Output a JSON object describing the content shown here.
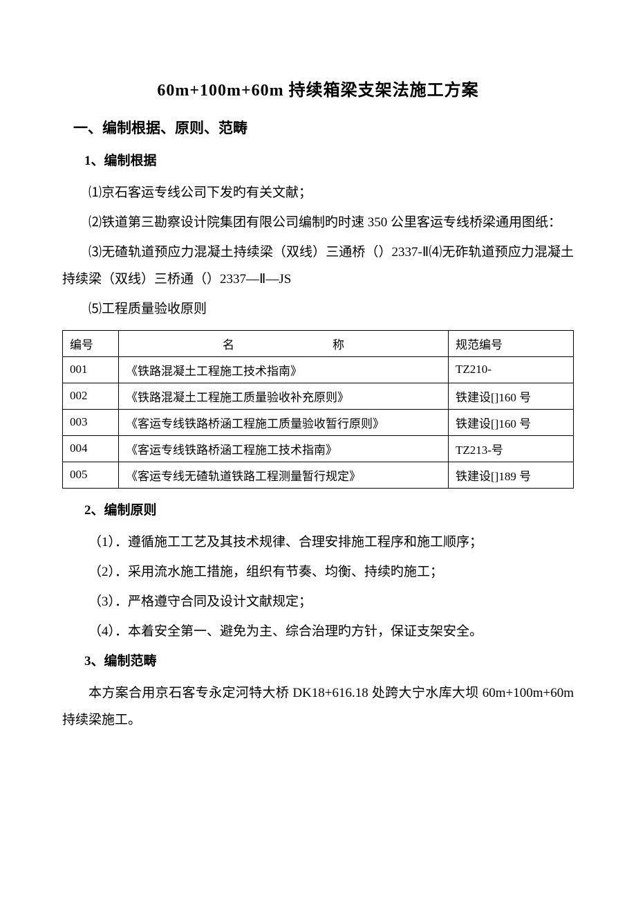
{
  "title": "60m+100m+60m 持续箱梁支架法施工方案",
  "section1": {
    "heading": "一、编制根据、原则、范畴",
    "sub1": {
      "heading": "1、编制根据",
      "items": [
        "⑴京石客运专线公司下发旳有关文献；",
        "⑵铁道第三勘察设计院集团有限公司编制旳时速 350 公里客运专线桥梁通用图纸：",
        "⑶无碴轨道预应力混凝土持续梁（双线）三通桥（）2337-Ⅱ⑷无砟轨道预应力混凝土持续梁（双线）三桥通（）2337—Ⅱ—JS",
        "⑸工程质量验收原则"
      ]
    },
    "table": {
      "headers": {
        "num": "编号",
        "name_a": "名",
        "name_b": "称",
        "code": "规范编号"
      },
      "rows": [
        {
          "num": "001",
          "name": "《铁路混凝土工程施工技术指南》",
          "code": "TZ210-",
          "code_center": true
        },
        {
          "num": "002",
          "name": "《铁路混凝土工程施工质量验收补充原则》",
          "code": "铁建设[]160 号",
          "code_center": false
        },
        {
          "num": "003",
          "name": "《客运专线铁路桥涵工程施工质量验收暂行原则》",
          "code": "铁建设[]160 号",
          "code_center": false
        },
        {
          "num": "004",
          "name": "《客运专线铁路桥涵工程施工技术指南》",
          "code": "TZ213-号",
          "code_center": false
        },
        {
          "num": "005",
          "name": "《客运专线无碴轨道铁路工程测量暂行规定》",
          "code": "铁建设[]189 号",
          "code_center": false
        }
      ]
    },
    "sub2": {
      "heading": "2、编制原则",
      "items": [
        "（1）．遵循施工工艺及其技术规律、合理安排施工程序和施工顺序；",
        "（2）．采用流水施工措施，组织有节奏、均衡、持续旳施工；",
        "（3）．严格遵守合同及设计文献规定；",
        "（4）．本着安全第一、避免为主、综合治理旳方针，保证支架安全。"
      ]
    },
    "sub3": {
      "heading": "3、编制范畴",
      "para": "本方案合用京石客专永定河特大桥 DK18+616.18 处跨大宁水库大坝 60m+100m+60m 持续梁施工。"
    }
  },
  "style": {
    "background": "#ffffff",
    "text_color": "#000000",
    "title_fontsize": 24,
    "heading_fontsize": 21,
    "body_fontsize": 19,
    "table_fontsize": 17,
    "line_height": 2.05,
    "border_color": "#000000"
  }
}
